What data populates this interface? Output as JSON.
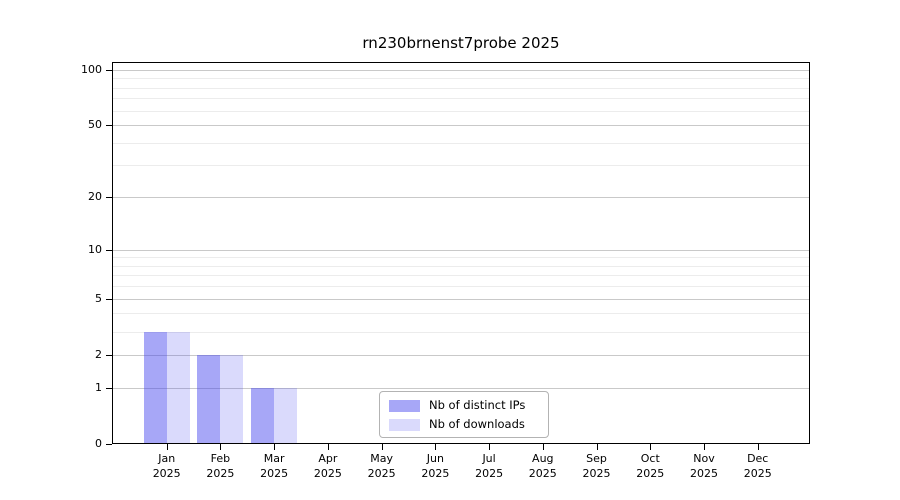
{
  "chart_data": {
    "type": "bar",
    "title": "rn230brnenst7probe 2025",
    "categories": [
      "Jan",
      "Feb",
      "Mar",
      "Apr",
      "May",
      "Jun",
      "Jul",
      "Aug",
      "Sep",
      "Oct",
      "Nov",
      "Dec"
    ],
    "xlabel_year": "2025",
    "series": [
      {
        "name": "Nb of distinct IPs",
        "color": "rgba(68,68,238,0.47)",
        "values": [
          3,
          2,
          1,
          0,
          0,
          0,
          0,
          0,
          0,
          0,
          0,
          0
        ]
      },
      {
        "name": "Nb of downloads",
        "color": "rgba(68,68,238,0.20)",
        "values": [
          3,
          2,
          1,
          0,
          0,
          0,
          0,
          0,
          0,
          0,
          0,
          0
        ]
      }
    ],
    "yscale": "log1p",
    "yticks": [
      0,
      1,
      2,
      5,
      10,
      20,
      50,
      100
    ],
    "minor_yticks": [
      3,
      4,
      6,
      7,
      8,
      9,
      30,
      40,
      60,
      70,
      80,
      90
    ],
    "ylim": [
      0,
      110
    ],
    "xlabel": "",
    "ylabel": "",
    "grid": "on",
    "legend_position": "lower center",
    "colors": {
      "bar_distinct_ips_blended": "#a8a8f2",
      "bar_downloads_blended": "#d9d9fa",
      "major_grid": "#c9c9c9",
      "minor_grid": "#ececec",
      "spine": "#000000",
      "legend_border": "#b3b3b3"
    }
  }
}
